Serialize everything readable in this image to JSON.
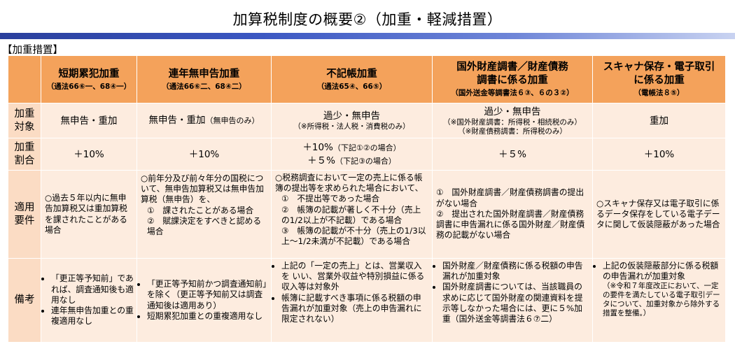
{
  "page": {
    "title": "加算税制度の概要②（加重・軽減措置）",
    "section": "【加重措置】"
  },
  "columns": [
    {
      "title": "短期累犯加重",
      "law": "（通法66⑥一、68④一）"
    },
    {
      "title": "連年無申告加重",
      "law": "（通法66⑥二、68④二）"
    },
    {
      "title": "不記帳加重",
      "law": "（通法65④、66⑤）"
    },
    {
      "title": "国外財産調書／財産債務調書に係る加重",
      "law": "（国外送金等調書法６③、６の３②）"
    },
    {
      "title": "スキャナ保存・電子取引に係る加重",
      "law": "（電帳法８⑤）"
    }
  ],
  "row_headers": {
    "target": "加重対象",
    "rate": "加重割合",
    "requirements": "適用要件",
    "notes": "備考"
  },
  "target": {
    "c1": "無申告・重加",
    "c2": "無申告・重加",
    "c2_note": "（無申告のみ）",
    "c3": "過少・無申告",
    "c3_note": "（※所得税・法人税・消費税のみ）",
    "c4": "過少・無申告",
    "c4_note1": "（※国外財産調書：所得税・相続税のみ）",
    "c4_note2": "（※財産債務調書：所得税のみ）",
    "c5": "重加"
  },
  "rate": {
    "c1": "＋10%",
    "c2": "＋10%",
    "c3_a": "＋10%",
    "c3_a_note": "（下記①②の場合）",
    "c3_b": "＋５%",
    "c3_b_note": "（下記③の場合）",
    "c4": "＋５%",
    "c5": "＋10%"
  },
  "requirements": {
    "c1": "○過去５年以内に無申告加算税又は重加算税を課されたことがある場合",
    "c2_intro": "○前年分及び前々年分の国税について、無申告加算税又は無申告加算税（無申告）を、",
    "c2_items": [
      "①　課されたことがある場合",
      "②　賦課決定をすべきと認める場合"
    ],
    "c3_intro": "○税務調査において一定の売上に係る帳簿の提出等を求められた場合において、",
    "c3_items": [
      "①　不提出等であった場合",
      "②　帳簿の記載が著しく不十分（売上の1/2以上が不記載）である場合",
      "③　帳簿の記載が不十分（売上の1/3以上～1/2未満が不記載）である場合"
    ],
    "c4_items": [
      "①　国外財産調書／財産債務調書の提出がない場合",
      "②　提出された国外財産調書／財産債務調書に申告漏れに係る国外財産／財産債務の記載がない場合"
    ],
    "c5": "○スキャナ保存又は電子取引に係るデータ保存をしている電子データに関して仮装隠蔽があった場合"
  },
  "notes": {
    "c1": [
      "「更正等予知前」であれば、調査通知後も適用なし",
      "連年無申告加重との重複適用なし"
    ],
    "c2": [
      "「更正等予知前かつ調査通知前」を除く（更正等予知前又は調査通知後は適用あり）",
      "短期累犯加重との重複適用なし"
    ],
    "c3": [
      "上記の「一定の売上」とは、営業収入を いい、営業外収益や特別損益に係る収入等は対象外",
      "帳簿に記載すべき事項に係る税額の申告漏れが加重対象（売上の申告漏れに限定されない）"
    ],
    "c4": [
      "国外財産／財産債務に係る税額の申告漏れが加重対象",
      "国外財産調書については、当該職員の求めに応じて国外財産の関連資料を提示等しなかった場合には、更に５%加重（国外送金等調書法６⑦二）"
    ],
    "c5": [
      "上記の仮装隠蔽部分に係る税額の申告漏れが加重対象"
    ],
    "c5_small": "（※令和７年度改正において、一定の要件を満たしている電子取引データについて、加重対象から除外する措置を整備。）"
  },
  "colors": {
    "header": "#f4a25b",
    "row_header": "#fbdcc4",
    "cell": "#fdecdf",
    "title_bar": "#2a3f9c"
  }
}
